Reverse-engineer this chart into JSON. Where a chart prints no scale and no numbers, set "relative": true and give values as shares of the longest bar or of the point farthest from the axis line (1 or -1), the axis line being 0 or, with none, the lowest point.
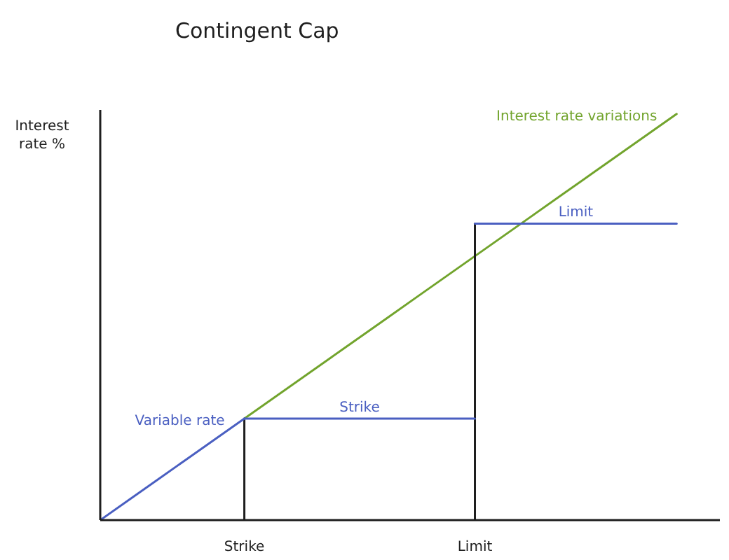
{
  "chart_data": {
    "type": "line",
    "title": "Contingent Cap",
    "ylabel": "Interest rate %",
    "relative": true,
    "tick_labels": "x",
    "categories": [
      null,
      null,
      null,
      null,
      null,
      "Strike",
      null,
      null,
      null,
      null,
      null,
      null,
      null,
      "Limit",
      null,
      null,
      null,
      null,
      null,
      null,
      null
    ],
    "series": [
      {
        "name": "Interest rate variations",
        "color": "#72a42d",
        "values": [
          null,
          null,
          null,
          null,
          null,
          0.25,
          0.3,
          0.35,
          0.4,
          0.45,
          0.5,
          0.55,
          0.6,
          0.65,
          0.7,
          0.75,
          0.8,
          0.85,
          0.9,
          0.95,
          1
        ]
      },
      {
        "color": "#1e1e1e",
        "x": [
          "Strike",
          "Strike"
        ],
        "values": [
          0,
          0.25
        ]
      },
      {
        "color": "#1e1e1e",
        "x": [
          "Limit",
          "Limit"
        ],
        "values": [
          0,
          0.73
        ]
      },
      {
        "name": "Variable rate",
        "color": "#4a5fc1",
        "values": [
          0,
          0.05,
          0.1,
          0.15,
          0.2,
          0.25,
          null,
          null,
          null,
          null,
          null,
          null,
          null,
          null,
          null,
          null,
          null,
          null,
          null,
          null,
          null
        ]
      },
      {
        "name": "Strike",
        "color": "#4a5fc1",
        "values": [
          null,
          null,
          null,
          null,
          null,
          0.25,
          0.25,
          0.25,
          0.25,
          0.25,
          0.25,
          0.25,
          0.25,
          0.25,
          null,
          null,
          null,
          null,
          null,
          null,
          null
        ]
      },
      {
        "name": "Limit",
        "color": "#4a5fc1",
        "values": [
          null,
          null,
          null,
          null,
          null,
          null,
          null,
          null,
          null,
          null,
          null,
          null,
          null,
          0.73,
          0.73,
          0.73,
          0.73,
          0.73,
          0.73,
          0.73,
          0.73
        ]
      }
    ]
  }
}
